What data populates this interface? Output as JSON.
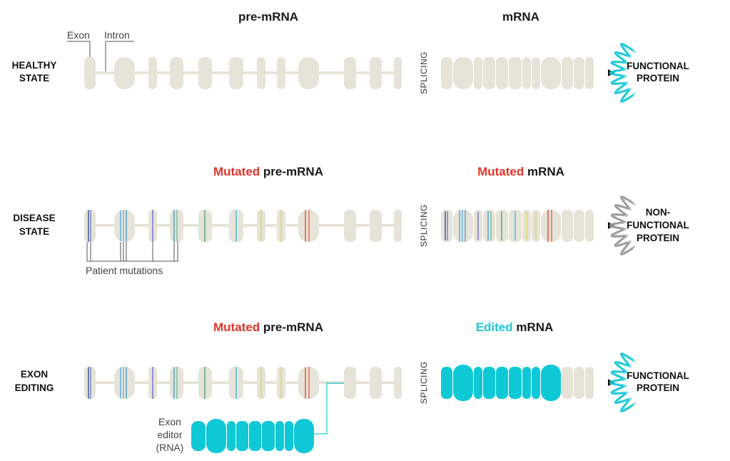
{
  "colors": {
    "exon": "#e6e3d8",
    "red": "#e0342a",
    "cyan": "#1ac8d8",
    "text": "#111111",
    "protein_healthy": "#1ac8d8",
    "protein_disease": "#9a9a9a"
  },
  "rows": {
    "healthy": {
      "label_line1": "HEALTHY",
      "label_line2": "STATE",
      "premrna_title": "pre-mRNA",
      "mrna_title": "mRNA",
      "splicing": "SPLICING",
      "protein_line1": "FUNCTIONAL",
      "protein_line2": "PROTEIN",
      "exon_label": "Exon",
      "intron_label": "Intron"
    },
    "disease": {
      "label_line1": "DISEASE",
      "label_line2": "STATE",
      "premrna_title_prefix": "Mutated",
      "premrna_title_rest": " pre-mRNA",
      "mrna_title_prefix": "Mutated",
      "mrna_title_rest": " mRNA",
      "splicing": "SPLICING",
      "protein_line1": "NON-",
      "protein_line2": "FUNCTIONAL",
      "protein_line3": "PROTEIN",
      "mutations_label": "Patient mutations"
    },
    "editing": {
      "label_line1": "EXON",
      "label_line2": "EDITING",
      "premrna_title_prefix": "Mutated",
      "premrna_title_rest": " pre-mRNA",
      "mrna_title_prefix": "Edited",
      "mrna_title_rest": " mRNA",
      "splicing": "SPLICING",
      "protein_line1": "FUNCTIONAL",
      "protein_line2": "PROTEIN",
      "editor_line1": "Exon",
      "editor_line2": "editor",
      "editor_line3": "(RNA)"
    }
  }
}
